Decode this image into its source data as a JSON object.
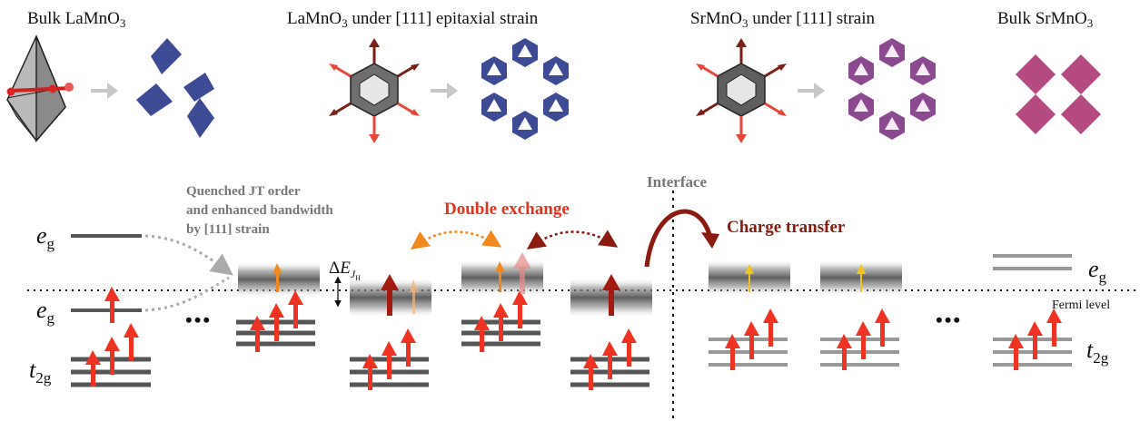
{
  "titles": {
    "bulk_lamno3": [
      "Bulk LaMnO",
      "3"
    ],
    "lamno3_strain": [
      "LaMnO",
      "3",
      " under [111] epitaxial strain"
    ],
    "srmno3_strain": [
      "SrMnO",
      "3",
      " under [111] strain"
    ],
    "bulk_srmno3": [
      "Bulk SrMnO",
      "3"
    ]
  },
  "annotations": {
    "quenched": [
      "Quenched JT order",
      "and enhanced bandwidth",
      "by [111] strain"
    ],
    "double_exchange": "Double exchange",
    "charge_transfer": "Charge transfer",
    "interface": "Interface",
    "fermi_level": "Fermi level",
    "ellipsis_left": "•••",
    "ellipsis_right": "•••",
    "delta_e": [
      "Δ",
      "E",
      "J",
      "H"
    ]
  },
  "level_labels": {
    "eg_upper": [
      "e",
      "g"
    ],
    "eg_lower": [
      "e",
      "g"
    ],
    "t2g_left": [
      "t",
      "2g"
    ],
    "eg_right": [
      "e",
      "g"
    ],
    "t2g_right": [
      "t",
      "2g"
    ]
  },
  "colors": {
    "red_arrow": "#ee3322",
    "orange_arrow": "#f08a1e",
    "yellow_arrow": "#f2c318",
    "dark_red": "#8b1a10",
    "navy": "#3d4b94",
    "purple": "#8b4a8f",
    "magenta": "#b44a7f",
    "dark_gray": "#555555",
    "light_gray": "#999999"
  }
}
